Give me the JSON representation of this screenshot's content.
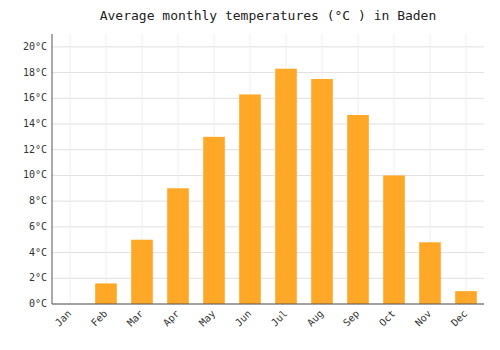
{
  "chart_data": {
    "type": "bar",
    "title": "Average monthly temperatures (°C ) in Baden",
    "categories": [
      "Jan",
      "Feb",
      "Mar",
      "Apr",
      "May",
      "Jun",
      "Jul",
      "Aug",
      "Sep",
      "Oct",
      "Nov",
      "Dec"
    ],
    "values": [
      0,
      1.6,
      5.0,
      9.0,
      13.0,
      16.3,
      18.3,
      17.5,
      14.7,
      10.0,
      4.8,
      1.0
    ],
    "color": "#FFA726",
    "ylim": [
      0,
      21
    ],
    "yticks": [
      {
        "value": 0,
        "label": "0°C"
      },
      {
        "value": 2,
        "label": "2°C"
      },
      {
        "value": 4,
        "label": "4°C"
      },
      {
        "value": 6,
        "label": "6°C"
      },
      {
        "value": 8,
        "label": "8°C"
      },
      {
        "value": 10,
        "label": "10°C"
      },
      {
        "value": 12,
        "label": "12°C"
      },
      {
        "value": 14,
        "label": "14°C"
      },
      {
        "value": 16,
        "label": "16°C"
      },
      {
        "value": 18,
        "label": "18°C"
      },
      {
        "value": 20,
        "label": "20°C"
      }
    ],
    "grid": true
  }
}
